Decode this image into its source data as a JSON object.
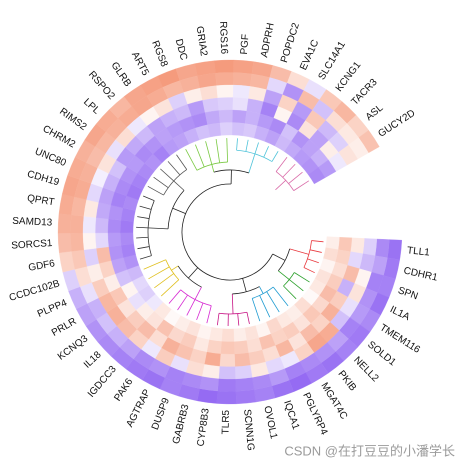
{
  "chart_data": {
    "type": "heatmap",
    "categories": [
      "TLL1",
      "CDHR1",
      "SPN",
      "IL1A",
      "TMEM116",
      "SOLD1",
      "NELL2",
      "PKIB",
      "MGAT4C",
      "PGLYRP4",
      "IQCA1",
      "OVOL1",
      "SCNN1G",
      "TLR5",
      "CYP8B3",
      "GABRB3",
      "DUSP9",
      "AGTRAP",
      "PAK6",
      "IGDCC3",
      "IL18",
      "KCNQ3",
      "PRLR",
      "PLPP4",
      "CCDC102B",
      "GDF6",
      "SORCS1",
      "SAMD13",
      "QPRT",
      "CDH19",
      "UNC80",
      "CHRM2",
      "RIMS2",
      "LPL",
      "RSPO2",
      "GLRB",
      "ART5",
      "RGS8",
      "DDC",
      "GRIA2",
      "RGS16",
      "PGF",
      "ADPRH",
      "POPDC2",
      "EVA1C",
      "SLC14A1",
      "KCNG1",
      "TACR3",
      "ASL",
      "GUCY2D"
    ],
    "matrix": [
      [
        -1.8,
        -1.7,
        -1.6,
        -1.8,
        -1.5,
        -1.7,
        -1.6,
        -1.8,
        -1.7,
        -1.9,
        -1.8,
        -1.6,
        -1.7,
        -1.8,
        -1.9,
        -1.7,
        -1.6,
        -1.8,
        -1.7,
        -1.6,
        -1.5,
        -1.4,
        -1.2,
        -1.0,
        -0.6,
        0.8,
        1.2,
        1.4,
        1.5,
        1.6,
        1.5,
        1.4,
        1.6,
        1.5,
        1.3,
        1.6,
        1.7,
        1.8,
        1.6,
        1.7,
        1.8,
        1.7,
        1.6,
        1.2,
        0.6,
        -0.4,
        1.0,
        1.3,
        0.8,
        1.1
      ],
      [
        -1.5,
        -1.2,
        -1.6,
        -1.4,
        -1.3,
        -1.6,
        -1.2,
        -1.4,
        -1.5,
        -1.6,
        -1.3,
        -1.5,
        -1.6,
        -1.7,
        -1.4,
        -1.5,
        -1.6,
        -1.4,
        -1.5,
        -1.2,
        -1.0,
        -0.8,
        -1.0,
        -0.4,
        0.6,
        1.0,
        1.3,
        1.4,
        1.3,
        1.5,
        1.4,
        1.2,
        1.3,
        1.4,
        1.5,
        1.6,
        1.5,
        1.3,
        1.4,
        1.6,
        1.5,
        1.4,
        1.3,
        -0.5,
        -1.4,
        1.2,
        -0.8,
        0.6,
        0.4,
        0.3
      ],
      [
        -0.6,
        -0.9,
        0.2,
        0.5,
        -0.4,
        -0.8,
        1.5,
        1.6,
        0.8,
        -0.3,
        -0.5,
        0.4,
        -0.6,
        -0.8,
        0.3,
        0.6,
        -0.4,
        0.9,
        -0.3,
        0.8,
        1.2,
        1.4,
        1.3,
        0.9,
        0.3,
        -0.6,
        0.2,
        -0.3,
        0.4,
        -0.5,
        -0.2,
        0.5,
        -0.4,
        0.6,
        -0.3,
        0.2,
        0.5,
        -0.6,
        0.3,
        0.6,
        0.2,
        -0.3,
        0.4,
        -1.2,
        0.8,
        -1.3,
        1.0,
        -0.9,
        -0.6,
        0.5
      ],
      [
        0.4,
        -0.5,
        1.2,
        -1.0,
        0.9,
        1.4,
        0.8,
        1.2,
        0.5,
        1.3,
        0.6,
        0.9,
        1.2,
        0.7,
        1.5,
        0.8,
        1.1,
        1.4,
        0.6,
        1.2,
        0.9,
        0.5,
        1.0,
        0.3,
        0.8,
        1.2,
        -0.5,
        -0.9,
        -1.1,
        -1.2,
        -1.0,
        -0.8,
        -1.3,
        -1.1,
        -0.9,
        -1.2,
        -1.0,
        -0.9,
        -1.3,
        -0.7,
        -0.6,
        -0.4,
        -1.0,
        -1.6,
        0.2,
        -1.5,
        0.5,
        -1.2,
        0.3,
        -0.3
      ],
      [
        1.0,
        0.8,
        0.6,
        0.9,
        1.2,
        0.7,
        1.0,
        0.5,
        0.9,
        0.8,
        1.1,
        0.6,
        0.9,
        1.0,
        0.8,
        0.4,
        0.9,
        0.7,
        1.1,
        0.5,
        0.3,
        -0.4,
        0.2,
        -0.8,
        -1.2,
        -1.4,
        -1.3,
        -1.5,
        -1.4,
        -1.6,
        -1.5,
        -1.4,
        -1.3,
        -1.5,
        -1.4,
        -1.2,
        -1.3,
        -1.4,
        -1.5,
        -1.1,
        -0.9,
        -1.2,
        -1.0,
        -1.3,
        -1.5,
        -0.8,
        -1.4,
        -1.2,
        -1.0,
        -1.3
      ],
      [
        0.3,
        0.6,
        0.2,
        0.5,
        0.4,
        0.1,
        0.6,
        0.3,
        0.4,
        0.7,
        0.2,
        0.5,
        0.3,
        0.6,
        0.4,
        0.2,
        0.5,
        0.3,
        0.1,
        0.4,
        -0.3,
        -0.6,
        -0.5,
        -0.9,
        -1.4,
        -1.6,
        -1.5,
        -1.7,
        -1.6,
        -1.5,
        -1.7,
        -1.6,
        -1.5,
        -1.4,
        -1.6,
        -1.3,
        -1.2,
        -1.0,
        -0.8,
        -0.9,
        -0.6,
        -0.8,
        -0.7,
        -1.0,
        -1.2,
        -0.9,
        -1.1,
        -1.3,
        -1.4,
        -1.5
      ]
    ],
    "zlim": [
      -2,
      2
    ],
    "colors": {
      "low": "#8f63f2",
      "mid": "#ffffff",
      "high": "#f4906f"
    },
    "watermark": "CSDN @在打豆豆的小潘学长"
  }
}
